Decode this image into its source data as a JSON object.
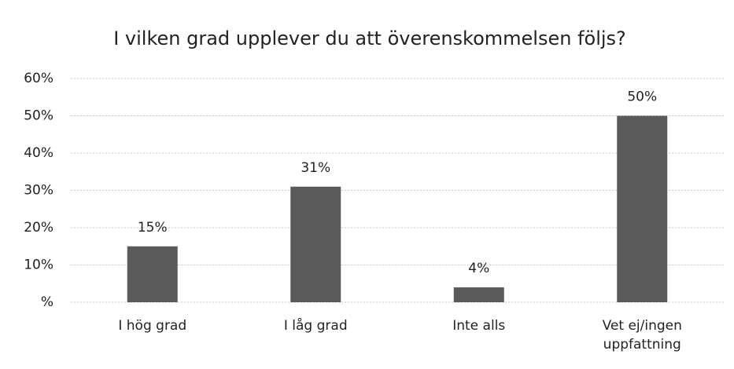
{
  "chart_data": {
    "type": "bar",
    "title": "I vilken grad upplever du att överenskommelsen följs?",
    "categories": [
      "I hög grad",
      "I låg grad",
      "Inte alls",
      "Vet ej/ingen uppfattning"
    ],
    "values": [
      15,
      31,
      4,
      50
    ],
    "value_labels": [
      "15%",
      "31%",
      "4%",
      "50%"
    ],
    "color": "#5a5a5a",
    "ylim": [
      0,
      60
    ],
    "yticks": [
      {
        "value": 0,
        "label": "%"
      },
      {
        "value": 10,
        "label": "10%"
      },
      {
        "value": 20,
        "label": "20%"
      },
      {
        "value": 30,
        "label": "30%"
      },
      {
        "value": 40,
        "label": "40%"
      },
      {
        "value": 50,
        "label": "50%"
      },
      {
        "value": 60,
        "label": "60%"
      }
    ],
    "grid": true
  }
}
